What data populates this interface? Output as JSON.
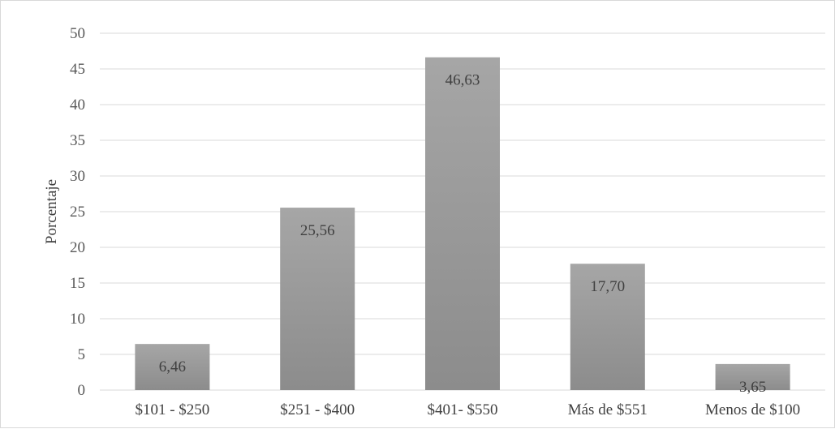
{
  "chart_data": {
    "type": "bar",
    "title": "",
    "xlabel": "",
    "ylabel": "Porcentaje",
    "categories": [
      "$101 - $250",
      "$251 - $400",
      "$401- $550",
      "Más de $551",
      "Menos de $100"
    ],
    "values": [
      6.46,
      25.56,
      46.63,
      17.7,
      3.65
    ],
    "data_labels": [
      "6,46",
      "25,56",
      "46,63",
      "17,70",
      "3,65"
    ],
    "ylim": [
      0,
      50
    ],
    "yticks": [
      0,
      5,
      10,
      15,
      20,
      25,
      30,
      35,
      40,
      45,
      50
    ],
    "grid": true,
    "legend": "none",
    "colors": {
      "bar_top": "#a6a6a6",
      "bar_bottom": "#8c8c8c",
      "grid": "#d9d9d9"
    }
  }
}
